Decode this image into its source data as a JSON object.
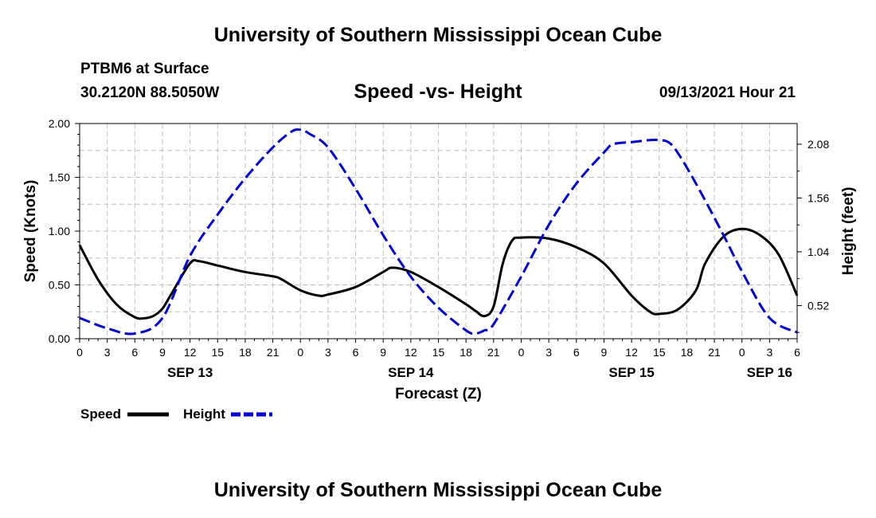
{
  "header": {
    "top_title": "University of Southern Mississippi Ocean Cube",
    "station": "PTBM6 at Surface",
    "location": "30.2120N  88.5050W",
    "chart_title": "Speed -vs- Height",
    "datetime": "09/13/2021 Hour 21",
    "bottom_title": "University of Southern Mississippi Ocean Cube"
  },
  "legend": {
    "speed_label": "Speed",
    "height_label": "Height"
  },
  "colors": {
    "speed": "#000000",
    "height": "#0000cc",
    "grid": "#bdbdbd"
  },
  "chart_data": {
    "type": "line",
    "title": "Speed -vs- Height",
    "xlabel": "Forecast (Z)",
    "ylabel": "Speed (Knots)",
    "y2label": "Height (feet)",
    "xlim": [
      0,
      78
    ],
    "ylim": [
      0,
      2.0
    ],
    "y2lim": [
      0.2,
      2.28
    ],
    "x_ticks": [
      0,
      3,
      6,
      9,
      12,
      15,
      18,
      21,
      24,
      27,
      30,
      33,
      36,
      39,
      42,
      45,
      48,
      51,
      54,
      57,
      60,
      63,
      66,
      69,
      72,
      75,
      78
    ],
    "x_tick_labels": [
      "0",
      "3",
      "6",
      "9",
      "12",
      "15",
      "18",
      "21",
      "0",
      "3",
      "6",
      "9",
      "12",
      "15",
      "18",
      "21",
      "0",
      "3",
      "6",
      "9",
      "12",
      "15",
      "18",
      "21",
      "0",
      "3",
      "6"
    ],
    "date_labels": [
      {
        "x": 12,
        "label": "SEP 13"
      },
      {
        "x": 36,
        "label": "SEP 14"
      },
      {
        "x": 60,
        "label": "SEP 15"
      },
      {
        "x": 75,
        "label": "SEP 16"
      }
    ],
    "y_ticks": [
      0,
      0.5,
      1.0,
      1.5,
      2.0
    ],
    "y_tick_labels": [
      "0.00",
      "0.50",
      "1.00",
      "1.50",
      "2.00"
    ],
    "y2_ticks": [
      0.52,
      1.04,
      1.56,
      2.08
    ],
    "y2_tick_labels": [
      "0.52",
      "1.04",
      "1.56",
      "2.08"
    ],
    "series": [
      {
        "name": "Speed",
        "axis": "left",
        "style": "solid",
        "x": [
          0,
          2,
          4,
          6,
          7,
          8,
          9,
          10,
          12,
          13,
          15,
          18,
          21,
          22,
          24,
          26,
          27,
          30,
          33,
          34,
          36,
          39,
          42,
          43,
          44,
          45,
          46,
          47,
          48,
          51,
          54,
          57,
          60,
          62,
          63,
          65,
          67,
          68,
          70,
          72,
          74,
          76,
          78
        ],
        "values": [
          0.87,
          0.55,
          0.32,
          0.2,
          0.19,
          0.21,
          0.28,
          0.42,
          0.7,
          0.72,
          0.68,
          0.62,
          0.58,
          0.55,
          0.45,
          0.4,
          0.41,
          0.48,
          0.62,
          0.66,
          0.62,
          0.48,
          0.32,
          0.26,
          0.21,
          0.3,
          0.7,
          0.91,
          0.94,
          0.93,
          0.85,
          0.7,
          0.4,
          0.25,
          0.23,
          0.27,
          0.45,
          0.7,
          0.95,
          1.02,
          0.96,
          0.78,
          0.4
        ]
      },
      {
        "name": "Height",
        "axis": "right",
        "style": "dashed",
        "x": [
          0,
          3,
          6,
          9,
          12,
          15,
          18,
          21,
          23,
          24,
          25,
          27,
          30,
          33,
          36,
          39,
          42,
          43,
          44,
          45,
          48,
          51,
          54,
          57,
          58,
          60,
          62,
          63,
          64,
          65,
          67,
          70,
          72,
          75,
          78
        ],
        "values": [
          0.4,
          0.3,
          0.25,
          0.4,
          1.0,
          1.4,
          1.75,
          2.05,
          2.2,
          2.22,
          2.18,
          2.05,
          1.65,
          1.2,
          0.8,
          0.5,
          0.28,
          0.25,
          0.28,
          0.34,
          0.8,
          1.3,
          1.7,
          2.0,
          2.08,
          2.1,
          2.12,
          2.12,
          2.1,
          2.0,
          1.7,
          1.2,
          0.85,
          0.4,
          0.26
        ]
      }
    ]
  }
}
